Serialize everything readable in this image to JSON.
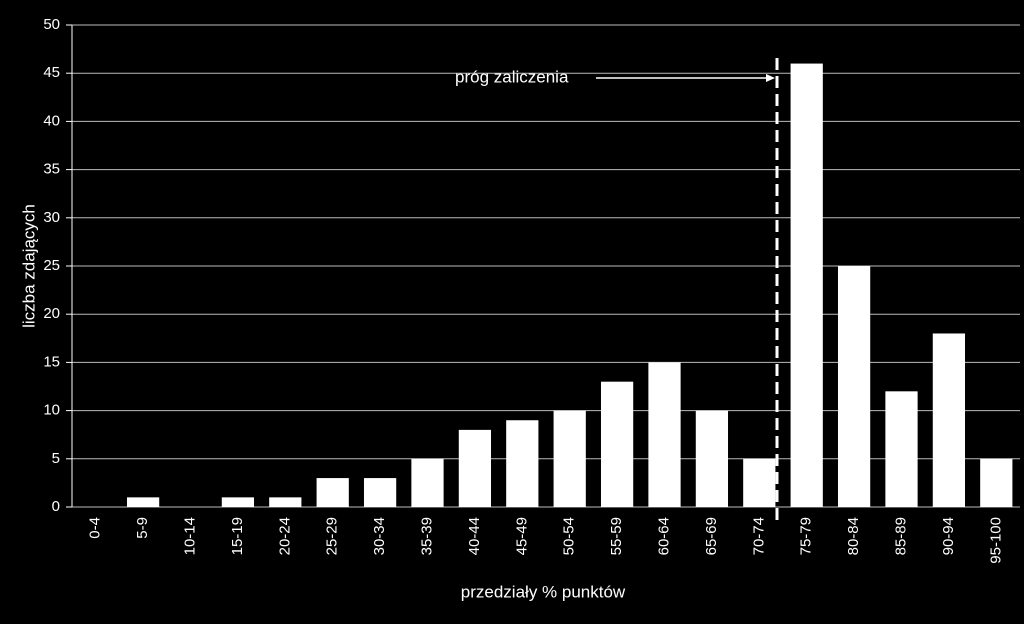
{
  "chart_data": {
    "type": "bar",
    "categories": [
      "0-4",
      "5-9",
      "10-14",
      "15-19",
      "20-24",
      "25-29",
      "30-34",
      "35-39",
      "40-44",
      "45-49",
      "50-54",
      "55-59",
      "60-64",
      "65-69",
      "70-74",
      "75-79",
      "80-84",
      "85-89",
      "90-94",
      "95-100"
    ],
    "values": [
      0,
      1,
      0,
      1,
      1,
      3,
      3,
      5,
      8,
      9,
      10,
      13,
      15,
      10,
      5,
      46,
      25,
      12,
      18,
      5
    ],
    "color": "#ffffff",
    "ylim": [
      0,
      50
    ],
    "yticks": [
      0,
      5,
      10,
      15,
      20,
      25,
      30,
      35,
      40,
      45,
      50
    ],
    "grid": true,
    "x_label": "przedziały % punktów",
    "y_label": "liczba zdających",
    "annotation": "próg zaliczenia"
  }
}
